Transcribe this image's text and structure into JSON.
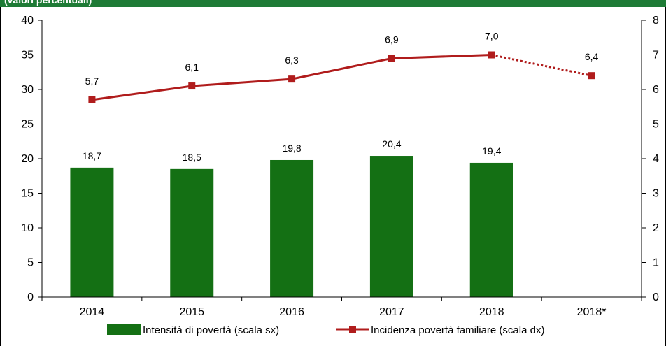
{
  "header": {
    "title": "(valori percentuali)"
  },
  "colors": {
    "bar": "#147014",
    "line": "#b01c1c",
    "header": "#1e7b36",
    "axis": "#000000"
  },
  "chart_data": {
    "type": "bar",
    "categories": [
      "2014",
      "2015",
      "2016",
      "2017",
      "2018",
      "2018*"
    ],
    "y_left": {
      "ylim": [
        0,
        40
      ],
      "ticks": [
        "0",
        "5",
        "10",
        "15",
        "20",
        "25",
        "30",
        "35",
        "40"
      ]
    },
    "y_right": {
      "ylim": [
        0,
        8
      ],
      "ticks": [
        "0",
        "1",
        "2",
        "3",
        "4",
        "5",
        "6",
        "7",
        "8"
      ]
    },
    "series": [
      {
        "name": "Intensità di povertà (scala sx)",
        "type": "bar",
        "axis": "left",
        "values": [
          18.7,
          18.5,
          19.8,
          20.4,
          19.4,
          null
        ],
        "labels": [
          "18,7",
          "18,5",
          "19,8",
          "20,4",
          "19,4",
          ""
        ]
      },
      {
        "name": "Incidenza povertà familiare (scala dx)",
        "type": "line",
        "axis": "right",
        "values": [
          5.7,
          6.1,
          6.3,
          6.9,
          7.0,
          6.4
        ],
        "labels": [
          "5,7",
          "6,1",
          "6,3",
          "6,9",
          "7,0",
          "6,4"
        ],
        "dotted_last_segment": true
      }
    ],
    "grid": false,
    "legend_position": "bottom"
  }
}
